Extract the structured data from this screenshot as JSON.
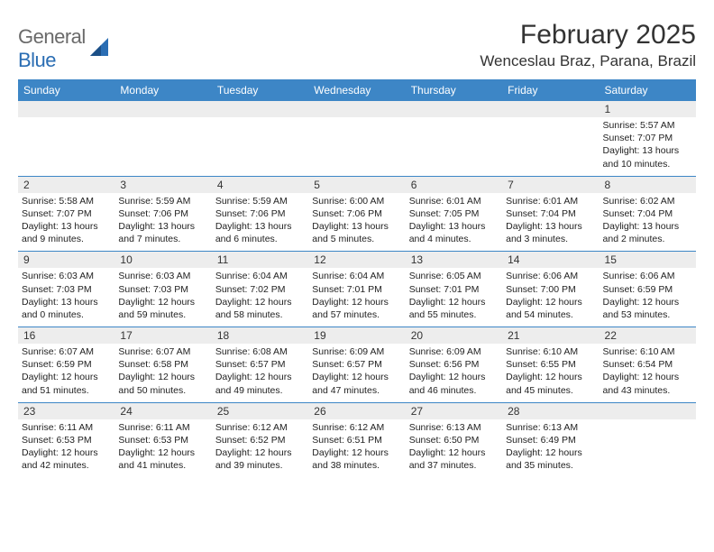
{
  "logo": {
    "general": "General",
    "blue": "Blue"
  },
  "title": "February 2025",
  "location": "Wenceslau Braz, Parana, Brazil",
  "colors": {
    "header_bar": "#3d86c6",
    "daynum_bg": "#ededed",
    "rule": "#3d86c6",
    "logo_gray": "#6a6a6a",
    "logo_blue": "#2a6db3",
    "background": "#ffffff"
  },
  "day_labels": [
    "Sunday",
    "Monday",
    "Tuesday",
    "Wednesday",
    "Thursday",
    "Friday",
    "Saturday"
  ],
  "weeks": [
    [
      null,
      null,
      null,
      null,
      null,
      null,
      {
        "n": "1",
        "sunrise": "5:57 AM",
        "sunset": "7:07 PM",
        "daylight": "13 hours and 10 minutes."
      }
    ],
    [
      {
        "n": "2",
        "sunrise": "5:58 AM",
        "sunset": "7:07 PM",
        "daylight": "13 hours and 9 minutes."
      },
      {
        "n": "3",
        "sunrise": "5:59 AM",
        "sunset": "7:06 PM",
        "daylight": "13 hours and 7 minutes."
      },
      {
        "n": "4",
        "sunrise": "5:59 AM",
        "sunset": "7:06 PM",
        "daylight": "13 hours and 6 minutes."
      },
      {
        "n": "5",
        "sunrise": "6:00 AM",
        "sunset": "7:06 PM",
        "daylight": "13 hours and 5 minutes."
      },
      {
        "n": "6",
        "sunrise": "6:01 AM",
        "sunset": "7:05 PM",
        "daylight": "13 hours and 4 minutes."
      },
      {
        "n": "7",
        "sunrise": "6:01 AM",
        "sunset": "7:04 PM",
        "daylight": "13 hours and 3 minutes."
      },
      {
        "n": "8",
        "sunrise": "6:02 AM",
        "sunset": "7:04 PM",
        "daylight": "13 hours and 2 minutes."
      }
    ],
    [
      {
        "n": "9",
        "sunrise": "6:03 AM",
        "sunset": "7:03 PM",
        "daylight": "13 hours and 0 minutes."
      },
      {
        "n": "10",
        "sunrise": "6:03 AM",
        "sunset": "7:03 PM",
        "daylight": "12 hours and 59 minutes."
      },
      {
        "n": "11",
        "sunrise": "6:04 AM",
        "sunset": "7:02 PM",
        "daylight": "12 hours and 58 minutes."
      },
      {
        "n": "12",
        "sunrise": "6:04 AM",
        "sunset": "7:01 PM",
        "daylight": "12 hours and 57 minutes."
      },
      {
        "n": "13",
        "sunrise": "6:05 AM",
        "sunset": "7:01 PM",
        "daylight": "12 hours and 55 minutes."
      },
      {
        "n": "14",
        "sunrise": "6:06 AM",
        "sunset": "7:00 PM",
        "daylight": "12 hours and 54 minutes."
      },
      {
        "n": "15",
        "sunrise": "6:06 AM",
        "sunset": "6:59 PM",
        "daylight": "12 hours and 53 minutes."
      }
    ],
    [
      {
        "n": "16",
        "sunrise": "6:07 AM",
        "sunset": "6:59 PM",
        "daylight": "12 hours and 51 minutes."
      },
      {
        "n": "17",
        "sunrise": "6:07 AM",
        "sunset": "6:58 PM",
        "daylight": "12 hours and 50 minutes."
      },
      {
        "n": "18",
        "sunrise": "6:08 AM",
        "sunset": "6:57 PM",
        "daylight": "12 hours and 49 minutes."
      },
      {
        "n": "19",
        "sunrise": "6:09 AM",
        "sunset": "6:57 PM",
        "daylight": "12 hours and 47 minutes."
      },
      {
        "n": "20",
        "sunrise": "6:09 AM",
        "sunset": "6:56 PM",
        "daylight": "12 hours and 46 minutes."
      },
      {
        "n": "21",
        "sunrise": "6:10 AM",
        "sunset": "6:55 PM",
        "daylight": "12 hours and 45 minutes."
      },
      {
        "n": "22",
        "sunrise": "6:10 AM",
        "sunset": "6:54 PM",
        "daylight": "12 hours and 43 minutes."
      }
    ],
    [
      {
        "n": "23",
        "sunrise": "6:11 AM",
        "sunset": "6:53 PM",
        "daylight": "12 hours and 42 minutes."
      },
      {
        "n": "24",
        "sunrise": "6:11 AM",
        "sunset": "6:53 PM",
        "daylight": "12 hours and 41 minutes."
      },
      {
        "n": "25",
        "sunrise": "6:12 AM",
        "sunset": "6:52 PM",
        "daylight": "12 hours and 39 minutes."
      },
      {
        "n": "26",
        "sunrise": "6:12 AM",
        "sunset": "6:51 PM",
        "daylight": "12 hours and 38 minutes."
      },
      {
        "n": "27",
        "sunrise": "6:13 AM",
        "sunset": "6:50 PM",
        "daylight": "12 hours and 37 minutes."
      },
      {
        "n": "28",
        "sunrise": "6:13 AM",
        "sunset": "6:49 PM",
        "daylight": "12 hours and 35 minutes."
      },
      null
    ]
  ],
  "labels": {
    "sunrise": "Sunrise: ",
    "sunset": "Sunset: ",
    "daylight": "Daylight: "
  }
}
